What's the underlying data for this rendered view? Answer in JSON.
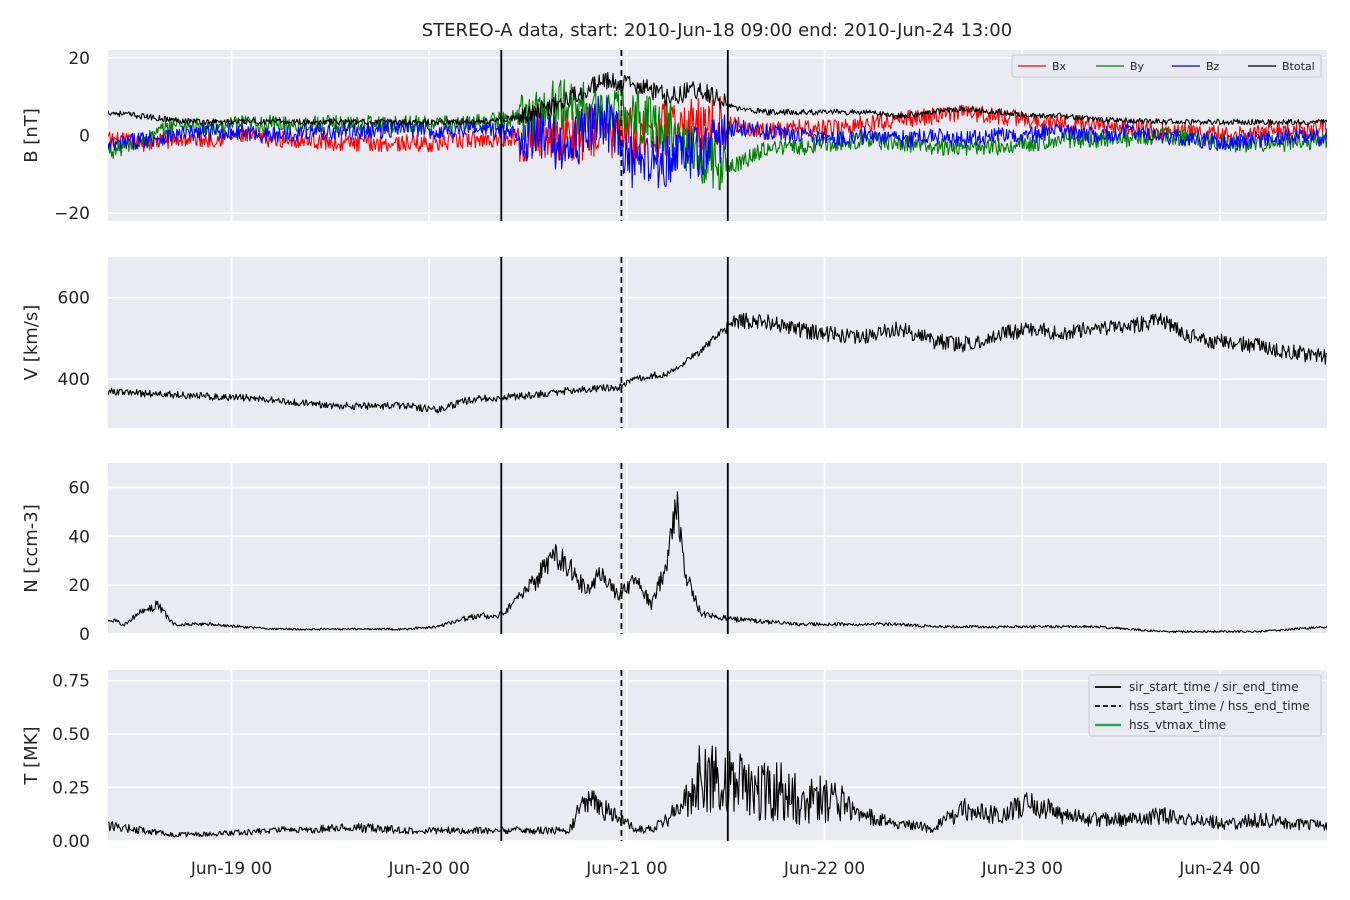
{
  "chart_data": {
    "title": "STEREO-A data, start: 2010-Jun-18 09:00  end: 2010-Jun-24 13:00",
    "x_range": [
      "2010-06-18 09:00",
      "2010-06-24 13:00"
    ],
    "x_tick_labels": [
      "Jun-19 00",
      "Jun-20 00",
      "Jun-21 00",
      "Jun-22 00",
      "Jun-23 00",
      "Jun-24 00"
    ],
    "x_tick_hours": [
      15,
      39,
      63,
      87,
      111,
      135
    ],
    "events": {
      "sir_start_time": "2010-06-20 08:45",
      "hss_start_time": "2010-06-20 23:20",
      "sir_end_time": "2010-06-21 12:15"
    },
    "panels": [
      {
        "type": "line",
        "ylabel": "B [nT]",
        "ylim": [
          -22,
          22
        ],
        "yticks": [
          -20,
          0,
          20
        ],
        "ytick_labels": [
          "−20",
          "0",
          "20"
        ],
        "legend": {
          "placement": "top-right",
          "entries": [
            "Bx",
            "By",
            "Bz",
            "Btotal"
          ]
        },
        "series": [
          {
            "name": "Bx",
            "color": "#ff0000",
            "t": [
              0,
              4,
              8,
              12,
              16,
              20,
              24,
              28,
              32,
              36,
              40,
              44,
              48,
              52,
              56,
              60,
              64,
              68,
              72,
              76,
              80,
              84,
              88,
              92,
              96,
              100,
              104,
              108,
              112,
              116,
              120,
              124,
              128,
              132,
              136,
              140,
              144,
              148
            ],
            "y": [
              -1,
              -2,
              -1,
              -1,
              0,
              -1,
              -1,
              -2,
              -2,
              -2,
              -2,
              -1,
              -1,
              1,
              0,
              1,
              0,
              2,
              3,
              3,
              1,
              2,
              2,
              3,
              4,
              5,
              6,
              5,
              4,
              3,
              3,
              2,
              1,
              1,
              0,
              1,
              1,
              2
            ]
          },
          {
            "name": "By",
            "color": "#008000",
            "t": [
              0,
              4,
              8,
              12,
              16,
              20,
              24,
              28,
              32,
              36,
              40,
              44,
              48,
              52,
              56,
              60,
              64,
              68,
              72,
              76,
              80,
              84,
              88,
              92,
              96,
              100,
              104,
              108,
              112,
              116,
              120,
              124,
              128,
              132,
              136,
              140,
              144,
              148
            ],
            "y": [
              -4,
              -2,
              3,
              2,
              3,
              3,
              3,
              3,
              3,
              3,
              3,
              3,
              4,
              6,
              8,
              6,
              5,
              2,
              -6,
              -8,
              -3,
              -3,
              -2,
              -1,
              -2,
              -3,
              -3,
              -3,
              -2,
              -1,
              -1,
              -1,
              0,
              -1,
              -2,
              -2,
              -2,
              -1
            ]
          },
          {
            "name": "Bz",
            "color": "#0000ff",
            "t": [
              0,
              4,
              8,
              12,
              16,
              20,
              24,
              28,
              32,
              36,
              40,
              44,
              48,
              52,
              56,
              60,
              64,
              68,
              72,
              76,
              80,
              84,
              88,
              92,
              96,
              100,
              104,
              108,
              112,
              116,
              120,
              124,
              128,
              132,
              136,
              140,
              144,
              148
            ],
            "y": [
              -3,
              -1,
              0,
              1,
              1,
              0,
              1,
              1,
              1,
              2,
              1,
              2,
              1,
              0,
              -3,
              5,
              -8,
              -6,
              -4,
              2,
              1,
              0,
              -1,
              0,
              -1,
              0,
              -1,
              0,
              0,
              1,
              0,
              1,
              0,
              -1,
              -2,
              -1,
              0,
              -1
            ]
          },
          {
            "name": "Btotal",
            "color": "#000000",
            "t": [
              0,
              4,
              8,
              12,
              16,
              20,
              24,
              28,
              32,
              36,
              40,
              44,
              48,
              52,
              56,
              60,
              64,
              68,
              72,
              76,
              80,
              84,
              88,
              92,
              96,
              100,
              104,
              108,
              112,
              116,
              120,
              124,
              128,
              132,
              136,
              140,
              144,
              148
            ],
            "y": [
              6,
              5,
              4,
              3.5,
              3.5,
              3.5,
              3.5,
              3.5,
              3.5,
              3.5,
              3.5,
              3.5,
              4,
              6,
              10,
              14,
              13,
              10,
              12,
              7,
              6,
              6,
              6,
              6,
              5,
              6,
              7,
              6,
              5,
              5,
              4,
              4,
              3.5,
              3.5,
              3.5,
              3.5,
              3.5,
              3.5
            ]
          }
        ]
      },
      {
        "type": "line",
        "ylabel": "V [km/s]",
        "ylim": [
          280,
          700
        ],
        "yticks": [
          400,
          600
        ],
        "ytick_labels": [
          "400",
          "600"
        ],
        "series": [
          {
            "color": "#000000",
            "t": [
              0,
              4,
              8,
              12,
              16,
              20,
              24,
              28,
              32,
              36,
              40,
              44,
              48,
              52,
              56,
              60,
              62,
              64,
              68,
              72,
              76,
              80,
              84,
              88,
              92,
              96,
              100,
              104,
              108,
              112,
              116,
              120,
              124,
              128,
              132,
              136,
              140,
              144,
              148
            ],
            "y": [
              370,
              365,
              362,
              358,
              355,
              348,
              340,
              335,
              333,
              335,
              325,
              350,
              355,
              362,
              372,
              378,
              380,
              400,
              415,
              470,
              545,
              540,
              520,
              510,
              505,
              525,
              495,
              485,
              510,
              520,
              515,
              525,
              530,
              545,
              500,
              490,
              480,
              465,
              455
            ]
          }
        ]
      },
      {
        "type": "line",
        "ylabel": "N [ccm-3]",
        "ylim": [
          0,
          70
        ],
        "yticks": [
          0,
          20,
          40,
          60
        ],
        "ytick_labels": [
          "0",
          "20",
          "40",
          "60"
        ],
        "series": [
          {
            "color": "#000000",
            "t": [
              0,
              2,
              4,
              6,
              8,
              12,
              16,
              20,
              24,
              28,
              32,
              36,
              40,
              44,
              48,
              50,
              52,
              54,
              56,
              58,
              60,
              62,
              64,
              66,
              68,
              69,
              70,
              72,
              76,
              80,
              84,
              88,
              92,
              96,
              100,
              104,
              108,
              112,
              116,
              120,
              124,
              128,
              132,
              136,
              140,
              144,
              148
            ],
            "y": [
              6,
              4,
              9,
              12,
              4,
              4,
              3,
              2,
              2,
              2,
              2,
              2,
              3,
              7,
              8,
              15,
              22,
              33,
              28,
              18,
              25,
              15,
              22,
              12,
              30,
              55,
              25,
              8,
              6,
              5,
              4,
              4,
              4,
              4,
              3,
              3,
              3,
              3,
              3,
              3,
              2,
              1,
              1,
              1,
              1,
              2,
              3
            ]
          }
        ]
      },
      {
        "type": "line",
        "ylabel": "T [MK]",
        "ylim": [
          0,
          0.8
        ],
        "yticks": [
          0,
          0.25,
          0.5,
          0.75
        ],
        "ytick_labels": [
          "0.00",
          "0.25",
          "0.50",
          "0.75"
        ],
        "legend": {
          "placement": "top-right",
          "entries": [
            "sir_start_time / sir_end_time",
            "hss_start_time / hss_end_time",
            "hss_vtmax_time"
          ]
        },
        "series": [
          {
            "color": "#000000",
            "t": [
              0,
              4,
              8,
              12,
              16,
              20,
              24,
              28,
              32,
              36,
              40,
              44,
              48,
              52,
              56,
              58,
              60,
              62,
              64,
              66,
              68,
              70,
              72,
              74,
              76,
              78,
              80,
              84,
              88,
              92,
              96,
              100,
              104,
              108,
              112,
              116,
              120,
              124,
              128,
              132,
              136,
              140,
              144,
              148
            ],
            "y": [
              0.07,
              0.05,
              0.03,
              0.03,
              0.04,
              0.05,
              0.05,
              0.06,
              0.06,
              0.05,
              0.05,
              0.05,
              0.05,
              0.05,
              0.05,
              0.2,
              0.15,
              0.12,
              0.05,
              0.06,
              0.1,
              0.2,
              0.3,
              0.28,
              0.3,
              0.25,
              0.25,
              0.2,
              0.18,
              0.12,
              0.08,
              0.06,
              0.15,
              0.12,
              0.18,
              0.12,
              0.1,
              0.1,
              0.12,
              0.1,
              0.08,
              0.1,
              0.08,
              0.07
            ]
          }
        ]
      }
    ],
    "legend_colors": {
      "sir": "#000000",
      "hss": "#000000",
      "hss_vtmax": "#2ca25f"
    },
    "grid": true
  }
}
